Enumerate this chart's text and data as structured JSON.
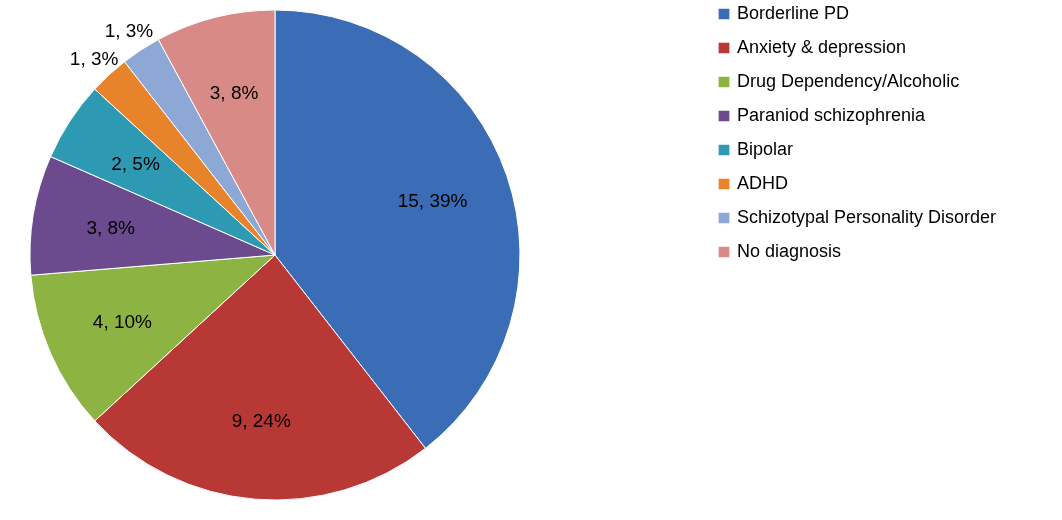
{
  "chart_data": {
    "type": "pie",
    "categories": [
      "Borderline PD",
      "Anxiety & depression",
      "Drug Dependency/Alcoholic",
      "Paraniod schizophrenia",
      "Bipolar",
      "ADHD",
      "Schizotypal Personality Disorder",
      "No diagnosis"
    ],
    "values": [
      15,
      9,
      4,
      3,
      2,
      1,
      1,
      3
    ],
    "colors": [
      "#3a6db5",
      "#b83836",
      "#8db443",
      "#6b4b8e",
      "#2e99b3",
      "#e7832a",
      "#8ea8d6",
      "#d88a87"
    ],
    "value_labels": [
      "15, 39%",
      "9, 24%",
      "4, 10%",
      "3, 8%",
      "2, 5%",
      "1, 3%",
      "1, 3%",
      "3, 8%"
    ],
    "legend": "right"
  }
}
